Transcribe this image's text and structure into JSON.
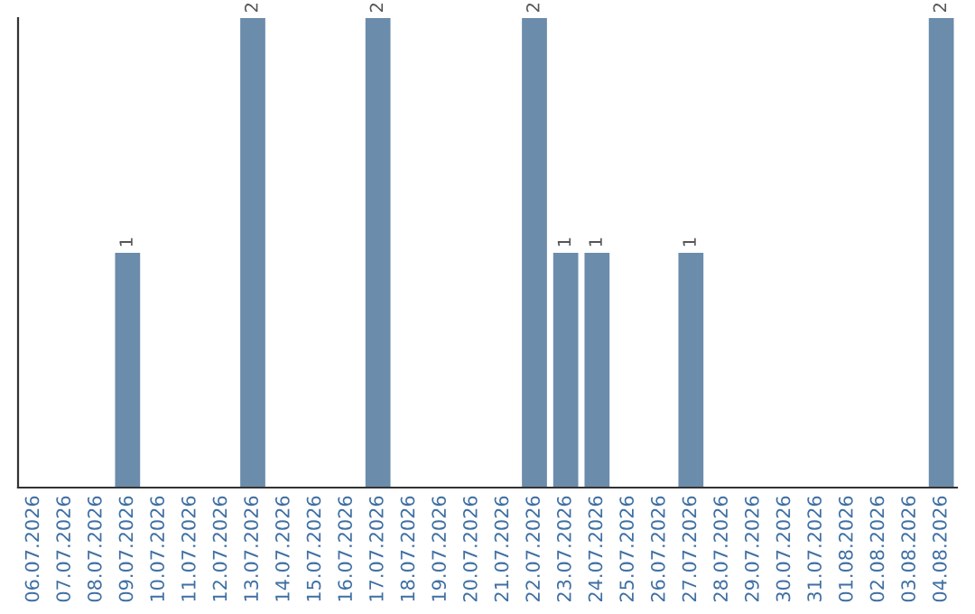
{
  "chart_data": {
    "type": "bar",
    "categories": [
      "06.07.2026",
      "07.07.2026",
      "08.07.2026",
      "09.07.2026",
      "10.07.2026",
      "11.07.2026",
      "12.07.2026",
      "13.07.2026",
      "14.07.2026",
      "15.07.2026",
      "16.07.2026",
      "17.07.2026",
      "18.07.2026",
      "19.07.2026",
      "20.07.2026",
      "21.07.2026",
      "22.07.2026",
      "23.07.2026",
      "24.07.2026",
      "25.07.2026",
      "26.07.2026",
      "27.07.2026",
      "28.07.2026",
      "29.07.2026",
      "30.07.2026",
      "31.07.2026",
      "01.08.2026",
      "02.08.2026",
      "03.08.2026",
      "04.08.2026"
    ],
    "values": [
      0,
      0,
      0,
      1,
      0,
      0,
      0,
      2,
      0,
      0,
      0,
      2,
      0,
      0,
      0,
      0,
      2,
      1,
      1,
      0,
      0,
      1,
      0,
      0,
      0,
      0,
      0,
      0,
      0,
      2
    ],
    "value_labels": [
      null,
      null,
      null,
      "1",
      null,
      null,
      null,
      "2",
      null,
      null,
      null,
      "2",
      null,
      null,
      null,
      null,
      "2",
      "1",
      "1",
      null,
      null,
      "1",
      null,
      null,
      null,
      null,
      null,
      null,
      null,
      "2"
    ],
    "color": "#6b8cab",
    "ylim": [
      0,
      2
    ],
    "tick_labels": "x",
    "grid": false,
    "legend": false
  }
}
